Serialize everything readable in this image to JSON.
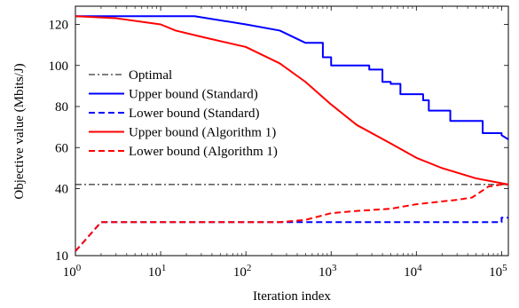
{
  "chart_data": {
    "type": "line",
    "xlabel": "Iteration index",
    "ylabel": "Objective value (Mbits/J)",
    "xscale": "log",
    "xlim": [
      1,
      120000
    ],
    "ylim": [
      10,
      130
    ],
    "grid": false,
    "legend_position": "center-left",
    "x_ticks": [
      {
        "value": 1,
        "base": "10",
        "exp": "0"
      },
      {
        "value": 10,
        "base": "10",
        "exp": "1"
      },
      {
        "value": 100,
        "base": "10",
        "exp": "2"
      },
      {
        "value": 1000,
        "base": "10",
        "exp": "3"
      },
      {
        "value": 10000,
        "base": "10",
        "exp": "4"
      },
      {
        "value": 100000,
        "base": "10",
        "exp": "5"
      }
    ],
    "y_ticks": [
      {
        "value": 10,
        "label": "10"
      },
      {
        "value": 40,
        "label": "40"
      },
      {
        "value": 60,
        "label": "60"
      },
      {
        "value": 80,
        "label": "80"
      },
      {
        "value": 100,
        "label": "100"
      },
      {
        "value": 120,
        "label": "120"
      }
    ],
    "series": [
      {
        "name": "Optimal",
        "color": "#000000",
        "dash": "dashdot",
        "x": [
          1,
          120000
        ],
        "y": [
          42,
          42
        ]
      },
      {
        "name": "Upper bound (Standard)",
        "color": "#0000ff",
        "dash": "solid",
        "x": [
          1,
          25,
          100,
          250,
          500,
          500,
          800,
          800,
          1000,
          1000,
          2800,
          2800,
          4000,
          4000,
          5000,
          5000,
          6500,
          6500,
          12000,
          12000,
          14000,
          14000,
          25000,
          25000,
          35000,
          35000,
          60000,
          60000,
          100000,
          100000,
          120000
        ],
        "y": [
          124,
          124,
          120,
          117,
          111,
          111,
          111,
          104,
          104,
          100,
          100,
          98,
          98,
          92,
          92,
          91,
          91,
          86,
          86,
          83,
          83,
          78,
          78,
          73,
          73,
          73,
          73,
          67,
          67,
          66,
          64
        ]
      },
      {
        "name": "Lower bound (Standard)",
        "color": "#0000ff",
        "dash": "dashed",
        "x": [
          1,
          2,
          100000,
          100000,
          120000
        ],
        "y": [
          12,
          25,
          25,
          27,
          27
        ]
      },
      {
        "name": "Upper bound (Algorithm 1)",
        "color": "#ff0000",
        "dash": "solid",
        "x": [
          1,
          3,
          10,
          15,
          30,
          100,
          250,
          500,
          1000,
          2000,
          5000,
          10000,
          20000,
          50000,
          120000
        ],
        "y": [
          124,
          123,
          120,
          117,
          114,
          109,
          101,
          92,
          81,
          71,
          62,
          55,
          50,
          45,
          42
        ]
      },
      {
        "name": "Lower bound (Algorithm 1)",
        "color": "#ff0000",
        "dash": "dashed",
        "x": [
          1,
          2,
          250,
          500,
          1000,
          2000,
          5000,
          10000,
          30000,
          45000,
          70000,
          100000,
          120000
        ],
        "y": [
          12,
          25,
          25,
          26,
          29,
          30,
          31,
          33,
          35,
          36,
          41,
          42,
          42
        ]
      }
    ]
  }
}
